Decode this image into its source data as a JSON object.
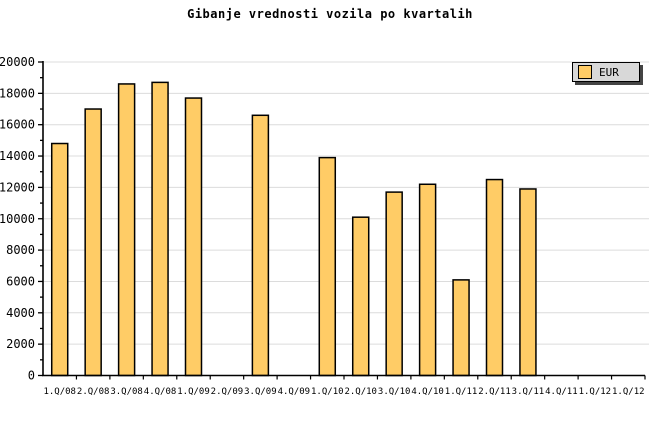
{
  "chart_data": {
    "type": "bar",
    "title": "Gibanje vrednosti vozila po kvartalih",
    "categories": [
      "1.Q/08",
      "2.Q/08",
      "3.Q/08",
      "4.Q/08",
      "1.Q/09",
      "2.Q/09",
      "3.Q/09",
      "4.Q/09",
      "1.Q/10",
      "2.Q/10",
      "3.Q/10",
      "4.Q/10",
      "1.Q/11",
      "2.Q/11",
      "3.Q/11",
      "4.Q/11",
      "1.Q/12",
      "1.Q/12"
    ],
    "values": [
      14800,
      17000,
      18600,
      18700,
      17700,
      null,
      16600,
      null,
      13900,
      10100,
      11700,
      12200,
      6100,
      12500,
      11900,
      null,
      null,
      null
    ],
    "xlabel": "",
    "ylabel": "",
    "ylim": [
      0,
      20000
    ],
    "y_major_step": 2000,
    "y_minor_step": 1000,
    "grid": "horizontal-major",
    "legend": {
      "label": "EUR",
      "position": "top-right"
    },
    "colors": {
      "bar_fill": "#FFCC66",
      "bar_border": "#000000",
      "grid_line": "#DCDCDC",
      "axis": "#000000",
      "text": "#000000",
      "legend_bg": "#D8D8D8",
      "legend_shadow": "#444444",
      "background": "#FFFFFF"
    }
  }
}
